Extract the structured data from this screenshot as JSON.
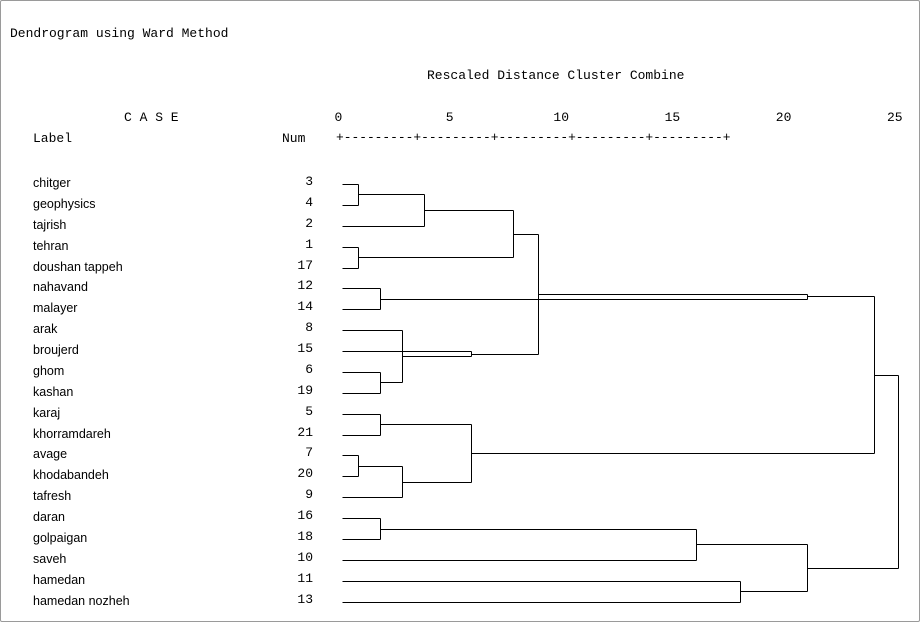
{
  "chart_data": {
    "type": "dendrogram",
    "title": "Dendrogram using Ward Method",
    "subtitle": "Rescaled Distance Cluster Combine",
    "case_header": "C A S E",
    "label_header": "Label",
    "num_header": "Num",
    "axis_ruler": "+---------+---------+---------+---------+---------+",
    "xlim": [
      0,
      25
    ],
    "x_ticks": [
      "0",
      "5",
      "10",
      "15",
      "20",
      "25"
    ],
    "leaves": [
      {
        "label": "chitger",
        "num": "3"
      },
      {
        "label": "geophysics",
        "num": "4"
      },
      {
        "label": "tajrish",
        "num": "2"
      },
      {
        "label": "tehran",
        "num": "1"
      },
      {
        "label": "doushan tappeh",
        "num": "17"
      },
      {
        "label": "nahavand",
        "num": "12"
      },
      {
        "label": "malayer",
        "num": "14"
      },
      {
        "label": "arak",
        "num": "8"
      },
      {
        "label": "broujerd",
        "num": "15"
      },
      {
        "label": "ghom",
        "num": "6"
      },
      {
        "label": "kashan",
        "num": "19"
      },
      {
        "label": "karaj",
        "num": "5"
      },
      {
        "label": "khorramdareh",
        "num": "21"
      },
      {
        "label": "avage",
        "num": "7"
      },
      {
        "label": "khodabandeh",
        "num": "20"
      },
      {
        "label": "tafresh",
        "num": "9"
      },
      {
        "label": "daran",
        "num": "16"
      },
      {
        "label": "golpaigan",
        "num": "18"
      },
      {
        "label": "saveh",
        "num": "10"
      },
      {
        "label": "hamedan",
        "num": "11"
      },
      {
        "label": "hamedan nozheh",
        "num": "13"
      }
    ],
    "merges": [
      {
        "a": 0,
        "b": 1,
        "height": 0.7
      },
      {
        "a": 3,
        "b": 4,
        "height": 0.7
      },
      {
        "a": 13,
        "b": 14,
        "height": 0.7
      },
      {
        "a": 5,
        "b": 6,
        "height": 1.7
      },
      {
        "a": 9,
        "b": 10,
        "height": 1.7
      },
      {
        "a": 11,
        "b": 12,
        "height": 1.7
      },
      {
        "a": 16,
        "b": 17,
        "height": 1.7
      },
      {
        "a": 25,
        "b": 7,
        "height": 2.7
      },
      {
        "a": 23,
        "b": 15,
        "height": 2.7
      },
      {
        "a": 21,
        "b": 2,
        "height": 3.7
      },
      {
        "a": 28,
        "b": 8,
        "height": 5.8
      },
      {
        "a": 26,
        "b": 29,
        "height": 5.8
      },
      {
        "a": 30,
        "b": 22,
        "height": 7.7
      },
      {
        "a": 33,
        "b": 31,
        "height": 8.8
      },
      {
        "a": 27,
        "b": 18,
        "height": 15.9
      },
      {
        "a": 20,
        "b": 19,
        "height": 17.9
      },
      {
        "a": 34,
        "b": 24,
        "height": 20.9
      },
      {
        "a": 35,
        "b": 36,
        "height": 20.9
      },
      {
        "a": 37,
        "b": 32,
        "height": 23.9
      },
      {
        "a": 39,
        "b": 38,
        "height": 25.0
      }
    ]
  }
}
